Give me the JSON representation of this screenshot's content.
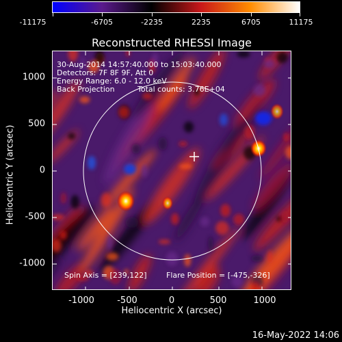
{
  "colorbar": {
    "ticks": [
      "-11175",
      "-6705",
      "-2235",
      "2235",
      "6705",
      "11175"
    ],
    "colors": [
      "#0000ff",
      "#5a1a8c",
      "#000000",
      "#c8181a",
      "#ff8c00",
      "#ffffff"
    ]
  },
  "title": "Reconstructed RHESSI Image",
  "info": {
    "line1": "30-Aug-2014 14:57:40.000 to 15:03:40.000",
    "line2": "Detectors: 7F 8F 9F, Att 0",
    "line3": "Energy Range: 6.0 - 12.0 keV",
    "line4a": "Back Projection",
    "line4b": "Total counts: 3.76E+04"
  },
  "footer": {
    "spin_axis": "Spin Axis = [239,122]",
    "flare_position": "Flare Position = [-475,-326]"
  },
  "axes": {
    "xlabel": "Heliocentric X (arcsec)",
    "ylabel": "Heliocentric Y (arcsec)",
    "xticks": [
      "-1000",
      "-500",
      "0",
      "500",
      "1000"
    ],
    "yticks": [
      "1000",
      "500",
      "0",
      "-500",
      "-1000"
    ]
  },
  "timestamp": "16-May-2022 14:06"
}
